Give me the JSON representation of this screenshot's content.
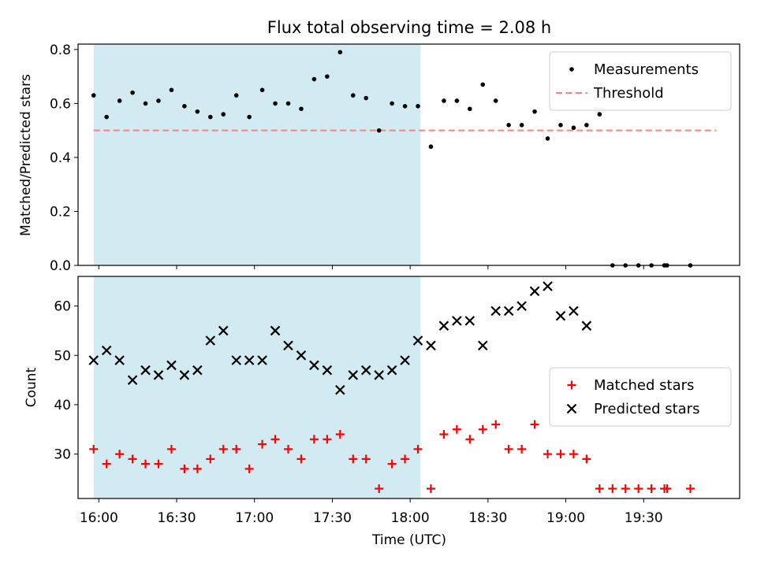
{
  "chart_data": [
    {
      "type": "scatter",
      "title": "Flux total observing time = 2.08 h",
      "xlabel": "",
      "ylabel": "Matched/Predicted stars",
      "ylim": [
        0,
        0.82
      ],
      "yticks": [
        "0.0",
        "0.2",
        "0.4",
        "0.6",
        "0.8"
      ],
      "ytick_values": [
        0,
        0.2,
        0.4,
        0.6,
        0.8
      ],
      "xlim": [
        "15:52",
        "20:07"
      ],
      "highlight_span": [
        "15:58",
        "18:04"
      ],
      "highlight_color": "#add8e6",
      "legend_position": "top-right",
      "threshold": {
        "name": "Threshold",
        "y": 0.5,
        "x_range": [
          "15:58",
          "19:58"
        ],
        "color": "#ff7f7f",
        "style": "dashed"
      },
      "series": [
        {
          "name": "Measurements",
          "marker": "dot",
          "color": "#000000",
          "x": [
            "15:58",
            "16:03",
            "16:08",
            "16:13",
            "16:18",
            "16:23",
            "16:28",
            "16:33",
            "16:38",
            "16:43",
            "16:48",
            "16:53",
            "16:58",
            "17:03",
            "17:08",
            "17:13",
            "17:18",
            "17:23",
            "17:28",
            "17:33",
            "17:38",
            "17:43",
            "17:48",
            "17:53",
            "17:58",
            "18:03",
            "18:08",
            "18:13",
            "18:18",
            "18:23",
            "18:28",
            "18:33",
            "18:38",
            "18:43",
            "18:48",
            "18:53",
            "18:58",
            "19:03",
            "19:08",
            "19:13",
            "19:18",
            "19:23",
            "19:28",
            "19:33",
            "19:38",
            "19:39",
            "19:48"
          ],
          "values": [
            0.63,
            0.55,
            0.61,
            0.64,
            0.6,
            0.61,
            0.65,
            0.59,
            0.57,
            0.55,
            0.56,
            0.63,
            0.55,
            0.65,
            0.6,
            0.6,
            0.58,
            0.69,
            0.7,
            0.79,
            0.63,
            0.62,
            0.5,
            0.6,
            0.59,
            0.59,
            0.44,
            0.61,
            0.61,
            0.58,
            0.67,
            0.61,
            0.52,
            0.52,
            0.57,
            0.47,
            0.52,
            0.51,
            0.52,
            0.56,
            0.0,
            0.0,
            0.0,
            0.0,
            0.0,
            0.0,
            0.0
          ]
        }
      ]
    },
    {
      "type": "scatter",
      "title": "",
      "xlabel": "Time (UTC)",
      "ylabel": "Count",
      "ylim": [
        21,
        66
      ],
      "yticks": [
        "30",
        "40",
        "50",
        "60"
      ],
      "ytick_values": [
        30,
        40,
        50,
        60
      ],
      "xlim": [
        "15:52",
        "20:07"
      ],
      "xticks": [
        "16:00",
        "16:30",
        "17:00",
        "17:30",
        "18:00",
        "18:30",
        "19:00",
        "19:30"
      ],
      "highlight_span": [
        "15:58",
        "18:04"
      ],
      "highlight_color": "#add8e6",
      "legend_position": "center-right",
      "series": [
        {
          "name": "Matched stars",
          "marker": "plus",
          "color": "#ff0000",
          "x": [
            "15:58",
            "16:03",
            "16:08",
            "16:13",
            "16:18",
            "16:23",
            "16:28",
            "16:33",
            "16:38",
            "16:43",
            "16:48",
            "16:53",
            "16:58",
            "17:03",
            "17:08",
            "17:13",
            "17:18",
            "17:23",
            "17:28",
            "17:33",
            "17:38",
            "17:43",
            "17:48",
            "17:53",
            "17:58",
            "18:03",
            "18:08",
            "18:13",
            "18:18",
            "18:23",
            "18:28",
            "18:33",
            "18:38",
            "18:43",
            "18:48",
            "18:53",
            "18:58",
            "19:03",
            "19:08",
            "19:13",
            "19:18",
            "19:23",
            "19:28",
            "19:33",
            "19:38",
            "19:39",
            "19:48"
          ],
          "values": [
            31,
            28,
            30,
            29,
            28,
            28,
            31,
            27,
            27,
            29,
            31,
            31,
            27,
            32,
            33,
            31,
            29,
            33,
            33,
            34,
            29,
            29,
            23,
            28,
            29,
            31,
            23,
            34,
            35,
            33,
            35,
            36,
            31,
            31,
            36,
            30,
            30,
            30,
            29,
            23,
            23,
            23,
            23,
            23,
            23,
            23,
            23
          ]
        },
        {
          "name": "Predicted stars",
          "marker": "x",
          "color": "#000000",
          "x": [
            "15:58",
            "16:03",
            "16:08",
            "16:13",
            "16:18",
            "16:23",
            "16:28",
            "16:33",
            "16:38",
            "16:43",
            "16:48",
            "16:53",
            "16:58",
            "17:03",
            "17:08",
            "17:13",
            "17:18",
            "17:23",
            "17:28",
            "17:33",
            "17:38",
            "17:43",
            "17:48",
            "17:53",
            "17:58",
            "18:03",
            "18:08",
            "18:13",
            "18:18",
            "18:23",
            "18:28",
            "18:33",
            "18:38",
            "18:43",
            "18:48",
            "18:53",
            "18:58",
            "19:03",
            "19:08"
          ],
          "values": [
            49,
            51,
            49,
            45,
            47,
            46,
            48,
            46,
            47,
            53,
            55,
            49,
            49,
            49,
            55,
            52,
            50,
            48,
            47,
            43,
            46,
            47,
            46,
            47,
            49,
            53,
            52,
            56,
            57,
            57,
            52,
            59,
            59,
            60,
            63,
            64,
            58,
            59,
            56
          ]
        }
      ]
    }
  ]
}
